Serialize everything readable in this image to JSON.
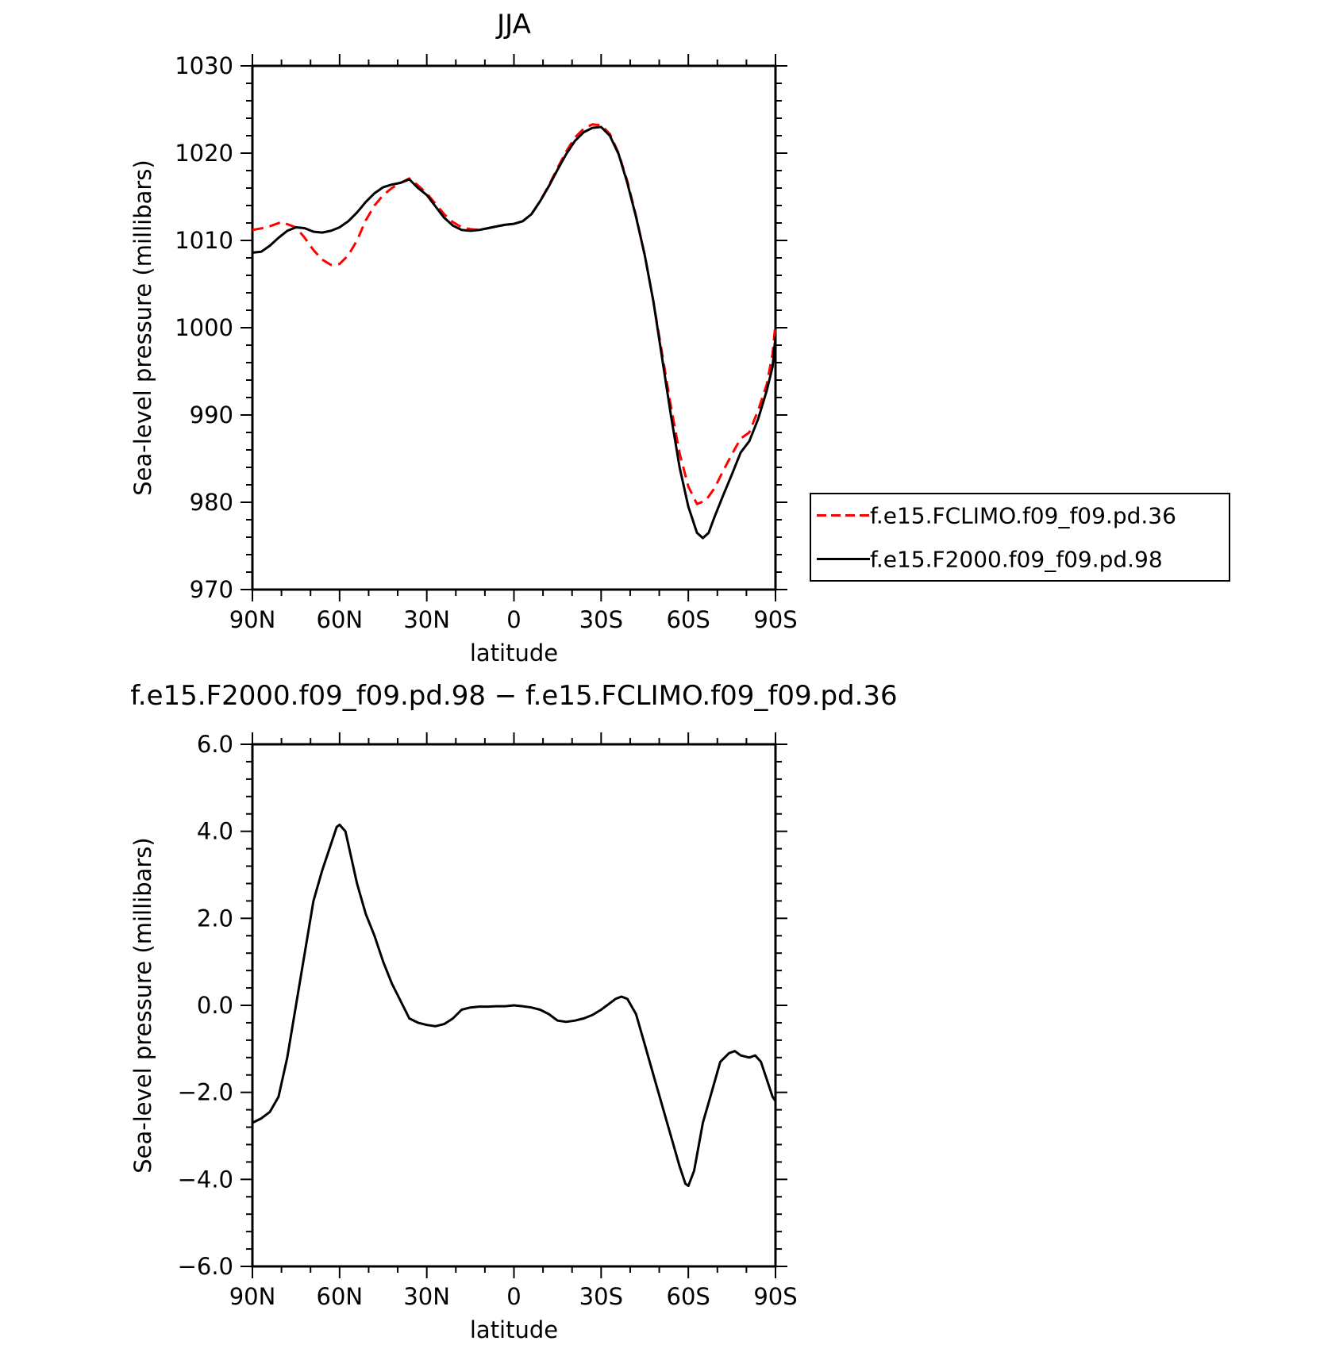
{
  "chart_data": [
    {
      "type": "line",
      "title": "JJA",
      "xlabel": "latitude",
      "ylabel": "Sea-level pressure (millibars)",
      "xlim": [
        90,
        -90
      ],
      "ylim": [
        970,
        1030
      ],
      "x_ticks": [
        {
          "value": 90,
          "label": "90N"
        },
        {
          "value": 60,
          "label": "60N"
        },
        {
          "value": 30,
          "label": "30N"
        },
        {
          "value": 0,
          "label": "0"
        },
        {
          "value": -30,
          "label": "30S"
        },
        {
          "value": -60,
          "label": "60S"
        },
        {
          "value": -90,
          "label": "90S"
        }
      ],
      "y_ticks": [
        {
          "value": 970,
          "label": "970"
        },
        {
          "value": 980,
          "label": "980"
        },
        {
          "value": 990,
          "label": "990"
        },
        {
          "value": 1000,
          "label": "1000"
        },
        {
          "value": 1010,
          "label": "1010"
        },
        {
          "value": 1020,
          "label": "1020"
        },
        {
          "value": 1030,
          "label": "1030"
        }
      ],
      "grid": false,
      "legend": {
        "position": "right"
      },
      "series": [
        {
          "name": "f.e15.FCLIMO.f09_f09.pd.36",
          "color": "#ff0000",
          "dash": "dashed",
          "points": [
            [
              90,
              1011.2
            ],
            [
              85,
              1011.5
            ],
            [
              80,
              1012.1
            ],
            [
              75,
              1011.5
            ],
            [
              72,
              1010.3
            ],
            [
              69,
              1008.9
            ],
            [
              66,
              1007.8
            ],
            [
              63,
              1007.2
            ],
            [
              60,
              1007.3
            ],
            [
              57,
              1008.3
            ],
            [
              54,
              1010
            ],
            [
              51,
              1012.3
            ],
            [
              48,
              1014
            ],
            [
              45,
              1015.2
            ],
            [
              42,
              1016
            ],
            [
              39,
              1016.6
            ],
            [
              36,
              1017.1
            ],
            [
              33,
              1016.3
            ],
            [
              30,
              1015.4
            ],
            [
              27,
              1014.2
            ],
            [
              24,
              1013
            ],
            [
              21,
              1012.1
            ],
            [
              18,
              1011.5
            ],
            [
              15,
              1011.3
            ],
            [
              12,
              1011.2
            ],
            [
              9,
              1011.4
            ],
            [
              6,
              1011.6
            ],
            [
              3,
              1011.8
            ],
            [
              0,
              1011.9
            ],
            [
              -3,
              1012.2
            ],
            [
              -6,
              1013
            ],
            [
              -9,
              1014.5
            ],
            [
              -12,
              1016.3
            ],
            [
              -15,
              1018.3
            ],
            [
              -18,
              1020.2
            ],
            [
              -21,
              1021.8
            ],
            [
              -24,
              1022.8
            ],
            [
              -27,
              1023.3
            ],
            [
              -30,
              1023.2
            ],
            [
              -33,
              1022.2
            ],
            [
              -36,
              1020
            ],
            [
              -39,
              1016.8
            ],
            [
              -42,
              1012.8
            ],
            [
              -45,
              1008.3
            ],
            [
              -48,
              1003
            ],
            [
              -51,
              997
            ],
            [
              -54,
              991
            ],
            [
              -57,
              985.6
            ],
            [
              -60,
              981.8
            ],
            [
              -63,
              979.8
            ],
            [
              -66,
              980.2
            ],
            [
              -69,
              981.6
            ],
            [
              -72,
              983.6
            ],
            [
              -75,
              985.5
            ],
            [
              -78,
              987.3
            ],
            [
              -81,
              988
            ],
            [
              -84,
              990.5
            ],
            [
              -87,
              993.5
            ],
            [
              -89,
              997
            ],
            [
              -90,
              1000.5
            ]
          ]
        },
        {
          "name": "f.e15.F2000.f09_f09.pd.98",
          "color": "#000000",
          "dash": "solid",
          "points": [
            [
              90,
              1008.6
            ],
            [
              87,
              1008.7
            ],
            [
              84,
              1009.4
            ],
            [
              81,
              1010.3
            ],
            [
              78,
              1011.1
            ],
            [
              75,
              1011.5
            ],
            [
              72,
              1011.4
            ],
            [
              69,
              1011
            ],
            [
              66,
              1010.9
            ],
            [
              63,
              1011.1
            ],
            [
              60,
              1011.5
            ],
            [
              57,
              1012.2
            ],
            [
              54,
              1013.2
            ],
            [
              51,
              1014.4
            ],
            [
              48,
              1015.4
            ],
            [
              45,
              1016.1
            ],
            [
              42,
              1016.4
            ],
            [
              39,
              1016.6
            ],
            [
              36,
              1017
            ],
            [
              33,
              1016
            ],
            [
              30,
              1015.2
            ],
            [
              27,
              1013.9
            ],
            [
              24,
              1012.6
            ],
            [
              21,
              1011.7
            ],
            [
              18,
              1011.2
            ],
            [
              15,
              1011.1
            ],
            [
              12,
              1011.2
            ],
            [
              9,
              1011.4
            ],
            [
              6,
              1011.6
            ],
            [
              3,
              1011.8
            ],
            [
              0,
              1011.9
            ],
            [
              -3,
              1012.2
            ],
            [
              -6,
              1013
            ],
            [
              -9,
              1014.5
            ],
            [
              -12,
              1016.2
            ],
            [
              -15,
              1018.1
            ],
            [
              -18,
              1019.9
            ],
            [
              -21,
              1021.4
            ],
            [
              -24,
              1022.4
            ],
            [
              -27,
              1022.9
            ],
            [
              -30,
              1023
            ],
            [
              -33,
              1022
            ],
            [
              -36,
              1019.9
            ],
            [
              -39,
              1016.6
            ],
            [
              -42,
              1012.7
            ],
            [
              -45,
              1008.3
            ],
            [
              -48,
              1003
            ],
            [
              -51,
              996.5
            ],
            [
              -54,
              990
            ],
            [
              -57,
              984
            ],
            [
              -60,
              979.5
            ],
            [
              -63,
              976.5
            ],
            [
              -65,
              975.9
            ],
            [
              -67,
              976.5
            ],
            [
              -69,
              978.3
            ],
            [
              -72,
              980.8
            ],
            [
              -75,
              983.2
            ],
            [
              -78,
              985.7
            ],
            [
              -81,
              987
            ],
            [
              -84,
              989.5
            ],
            [
              -87,
              992.8
            ],
            [
              -89,
              995.5
            ],
            [
              -90,
              999
            ]
          ]
        }
      ]
    },
    {
      "type": "line",
      "title": "f.e15.F2000.f09_f09.pd.98 − f.e15.FCLIMO.f09_f09.pd.36",
      "xlabel": "latitude",
      "ylabel": "Sea-level pressure (millibars)",
      "xlim": [
        90,
        -90
      ],
      "ylim": [
        -6,
        6
      ],
      "x_ticks": [
        {
          "value": 90,
          "label": "90N"
        },
        {
          "value": 60,
          "label": "60N"
        },
        {
          "value": 30,
          "label": "30N"
        },
        {
          "value": 0,
          "label": "0"
        },
        {
          "value": -30,
          "label": "30S"
        },
        {
          "value": -60,
          "label": "60S"
        },
        {
          "value": -90,
          "label": "90S"
        }
      ],
      "y_ticks": [
        {
          "value": -6,
          "label": "−6.0"
        },
        {
          "value": -4,
          "label": "−4.0"
        },
        {
          "value": -2,
          "label": "−2.0"
        },
        {
          "value": 0,
          "label": "0.0"
        },
        {
          "value": 2,
          "label": "2.0"
        },
        {
          "value": 4,
          "label": "4.0"
        },
        {
          "value": 6,
          "label": "6.0"
        }
      ],
      "grid": false,
      "series": [
        {
          "color": "#000000",
          "dash": "solid",
          "points": [
            [
              90,
              -2.7
            ],
            [
              87,
              -2.6
            ],
            [
              84,
              -2.45
            ],
            [
              81,
              -2.1
            ],
            [
              78,
              -1.2
            ],
            [
              75,
              0
            ],
            [
              72,
              1.2
            ],
            [
              69,
              2.4
            ],
            [
              66,
              3.1
            ],
            [
              63,
              3.7
            ],
            [
              61,
              4.1
            ],
            [
              60,
              4.15
            ],
            [
              58,
              4
            ],
            [
              56,
              3.4
            ],
            [
              54,
              2.8
            ],
            [
              51,
              2.1
            ],
            [
              48,
              1.6
            ],
            [
              45,
              1
            ],
            [
              42,
              0.5
            ],
            [
              39,
              0.1
            ],
            [
              36,
              -0.3
            ],
            [
              33,
              -0.4
            ],
            [
              30,
              -0.45
            ],
            [
              27,
              -0.48
            ],
            [
              24,
              -0.43
            ],
            [
              21,
              -0.3
            ],
            [
              18,
              -0.1
            ],
            [
              15,
              -0.05
            ],
            [
              12,
              -0.03
            ],
            [
              9,
              -0.03
            ],
            [
              6,
              -0.02
            ],
            [
              3,
              -0.02
            ],
            [
              0,
              0
            ],
            [
              -3,
              -0.02
            ],
            [
              -6,
              -0.05
            ],
            [
              -9,
              -0.1
            ],
            [
              -12,
              -0.2
            ],
            [
              -15,
              -0.35
            ],
            [
              -18,
              -0.38
            ],
            [
              -21,
              -0.35
            ],
            [
              -24,
              -0.3
            ],
            [
              -27,
              -0.22
            ],
            [
              -30,
              -0.1
            ],
            [
              -33,
              0.05
            ],
            [
              -35,
              0.15
            ],
            [
              -37,
              0.2
            ],
            [
              -39,
              0.15
            ],
            [
              -42,
              -0.2
            ],
            [
              -45,
              -0.9
            ],
            [
              -48,
              -1.6
            ],
            [
              -51,
              -2.3
            ],
            [
              -54,
              -3
            ],
            [
              -57,
              -3.7
            ],
            [
              -59,
              -4.1
            ],
            [
              -60,
              -4.15
            ],
            [
              -62,
              -3.8
            ],
            [
              -65,
              -2.7
            ],
            [
              -68,
              -2
            ],
            [
              -71,
              -1.3
            ],
            [
              -74,
              -1.1
            ],
            [
              -76,
              -1.05
            ],
            [
              -78,
              -1.15
            ],
            [
              -81,
              -1.2
            ],
            [
              -83,
              -1.15
            ],
            [
              -85,
              -1.3
            ],
            [
              -87,
              -1.7
            ],
            [
              -89,
              -2.1
            ],
            [
              -90,
              -2.2
            ]
          ]
        }
      ]
    }
  ]
}
